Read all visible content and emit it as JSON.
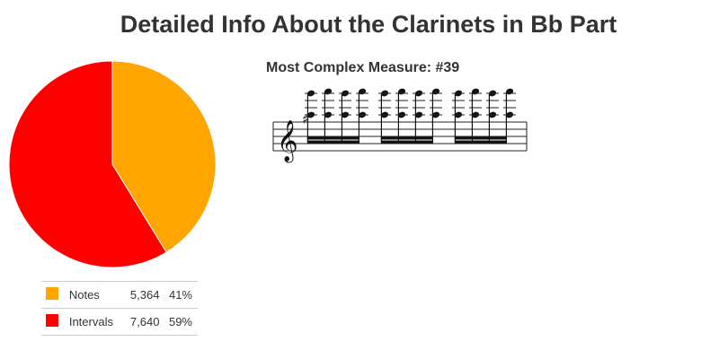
{
  "page": {
    "title": "Detailed Info About the Clarinets in Bb Part"
  },
  "chart_data": {
    "type": "pie",
    "title": "",
    "slices": [
      {
        "label": "Notes",
        "count": "5,364",
        "value": 5364,
        "percent": "41%",
        "color": "#ffa500"
      },
      {
        "label": "Intervals",
        "count": "7,640",
        "value": 7640,
        "percent": "59%",
        "color": "#ff0000"
      }
    ],
    "start_angle_deg": 0,
    "direction": "clockwise",
    "legend_position": "bottom"
  },
  "measure": {
    "title": "Most Complex Measure: #39",
    "clef": "treble",
    "key_signature": "F#",
    "beam_groups": 3,
    "notes_per_group": 4
  }
}
